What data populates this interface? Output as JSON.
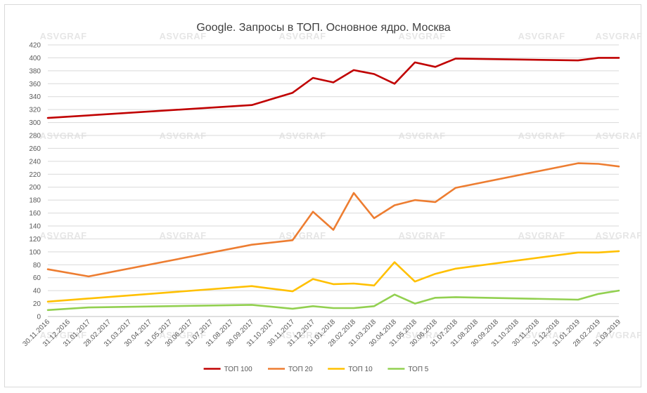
{
  "chart_data": {
    "type": "line",
    "title": "Google. Запросы в ТОП. Основное ядро. Москва",
    "xlabel": "",
    "ylabel": "",
    "ylim": [
      0,
      420
    ],
    "y_ticks": [
      0,
      20,
      40,
      60,
      80,
      100,
      120,
      140,
      160,
      180,
      200,
      220,
      240,
      260,
      280,
      300,
      320,
      340,
      360,
      380,
      400,
      420
    ],
    "grid": true,
    "legend_position": "bottom",
    "watermark": "ASVGRAF",
    "categories": [
      "30.11.2016",
      "31.12.2016",
      "31.01.2017",
      "28.02.2017",
      "31.03.2017",
      "30.04.2017",
      "31.05.2017",
      "30.06.2017",
      "31.07.2017",
      "31.08.2017",
      "30.09.2017",
      "31.10.2017",
      "30.11.2017",
      "31.12.2017",
      "31.01.2018",
      "28.02.2018",
      "31.03.2018",
      "30.04.2018",
      "31.05.2018",
      "30.06.2018",
      "31.07.2018",
      "31.08.2018",
      "30.09.2018",
      "31.10.2018",
      "30.11.2018",
      "31.12.2018",
      "31.01.2019",
      "28.02.2019",
      "31.03.2019"
    ],
    "series": [
      {
        "name": "ТОП 100",
        "color": "#c00000",
        "points": [
          [
            0,
            307
          ],
          [
            10,
            327
          ],
          [
            12,
            346
          ],
          [
            13,
            369
          ],
          [
            14,
            362
          ],
          [
            15,
            381
          ],
          [
            16,
            375
          ],
          [
            17,
            360
          ],
          [
            18,
            393
          ],
          [
            19,
            386
          ],
          [
            20,
            399
          ],
          [
            26,
            396
          ],
          [
            27,
            400
          ],
          [
            28,
            400
          ]
        ]
      },
      {
        "name": "ТОП 20",
        "color": "#ed7d31",
        "points": [
          [
            0,
            73
          ],
          [
            2,
            62
          ],
          [
            10,
            111
          ],
          [
            12,
            118
          ],
          [
            13,
            162
          ],
          [
            14,
            134
          ],
          [
            15,
            191
          ],
          [
            16,
            152
          ],
          [
            17,
            172
          ],
          [
            18,
            180
          ],
          [
            19,
            177
          ],
          [
            20,
            199
          ],
          [
            26,
            237
          ],
          [
            27,
            236
          ],
          [
            28,
            232
          ]
        ]
      },
      {
        "name": "ТОП 10",
        "color": "#ffc000",
        "points": [
          [
            0,
            23
          ],
          [
            10,
            47
          ],
          [
            12,
            39
          ],
          [
            13,
            58
          ],
          [
            14,
            50
          ],
          [
            15,
            51
          ],
          [
            16,
            48
          ],
          [
            17,
            84
          ],
          [
            18,
            54
          ],
          [
            19,
            66
          ],
          [
            20,
            74
          ],
          [
            26,
            99
          ],
          [
            27,
            99
          ],
          [
            28,
            101
          ]
        ]
      },
      {
        "name": "ТОП 5",
        "color": "#92d050",
        "points": [
          [
            0,
            10
          ],
          [
            2,
            14
          ],
          [
            10,
            18
          ],
          [
            12,
            12
          ],
          [
            13,
            16
          ],
          [
            14,
            13
          ],
          [
            15,
            13
          ],
          [
            16,
            16
          ],
          [
            17,
            34
          ],
          [
            18,
            20
          ],
          [
            19,
            29
          ],
          [
            20,
            30
          ],
          [
            26,
            26
          ],
          [
            27,
            35
          ],
          [
            28,
            40
          ]
        ]
      }
    ]
  }
}
